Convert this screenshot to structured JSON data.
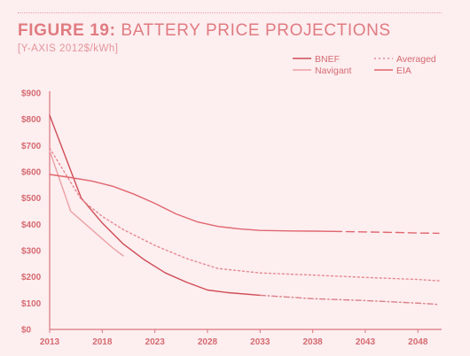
{
  "header": {
    "title_lead": "FIGURE 19:",
    "title_rest": "BATTERY PRICE PROJECTIONS",
    "subtitle": "[Y-AXIS 2012$/kWh]"
  },
  "colors": {
    "axis": "#d9777c",
    "text": "#d46b70",
    "BNEF": "#cf4d55",
    "Navigant": "#eba0a4",
    "Averaged": "#e48a90",
    "EIA": "#e0666e"
  },
  "chart_data": {
    "type": "line",
    "title": "FIGURE 19: BATTERY PRICE PROJECTIONS",
    "ylabel": "[Y-AXIS 2012$/kWh]",
    "xlabel": "",
    "xlim": [
      2013,
      2050
    ],
    "ylim": [
      0,
      900
    ],
    "x_ticks": [
      "2013",
      "2018",
      "2023",
      "2028",
      "2033",
      "2038",
      "2043",
      "2048"
    ],
    "y_ticks": [
      "$0",
      "$100",
      "$200",
      "$300",
      "$400",
      "$500",
      "$600",
      "$700",
      "$800",
      "$900"
    ],
    "legend_position": "top-right",
    "series": [
      {
        "name": "BNEF",
        "color": "#cf4d55",
        "dash": "solid",
        "x": [
          2013,
          2016,
          2018,
          2020,
          2022,
          2024,
          2026,
          2028,
          2030,
          2033
        ],
        "y": [
          815,
          500,
          405,
          325,
          265,
          215,
          180,
          150,
          140,
          130
        ]
      },
      {
        "name": "Navigant",
        "color": "#eba0a4",
        "dash": "solid",
        "x": [
          2013,
          2015,
          2017,
          2019,
          2020
        ],
        "y": [
          680,
          450,
          380,
          310,
          280
        ]
      },
      {
        "name": "Averaged",
        "color": "#e48a90",
        "dash": "dotted",
        "x": [
          2013,
          2016,
          2018,
          2020,
          2023,
          2026,
          2029,
          2033,
          2038,
          2043,
          2048,
          2050
        ],
        "y": [
          690,
          495,
          430,
          380,
          320,
          270,
          232,
          215,
          207,
          198,
          190,
          185
        ]
      },
      {
        "name": "EIA",
        "color": "#e0666e",
        "dash": "solid-then-dashed",
        "x": [
          2013,
          2015,
          2017,
          2019,
          2021,
          2023,
          2025,
          2027,
          2029,
          2031,
          2033,
          2036,
          2038,
          2040,
          2043,
          2046,
          2048,
          2050
        ],
        "y": [
          590,
          578,
          565,
          545,
          515,
          480,
          440,
          410,
          392,
          383,
          377,
          375,
          374,
          373,
          371,
          369,
          367,
          366
        ]
      },
      {
        "name": "",
        "color": "#d98086",
        "dash": "dash-dot",
        "x": [
          2033,
          2038,
          2043,
          2048,
          2050
        ],
        "y": [
          130,
          117,
          110,
          100,
          95
        ]
      }
    ]
  }
}
